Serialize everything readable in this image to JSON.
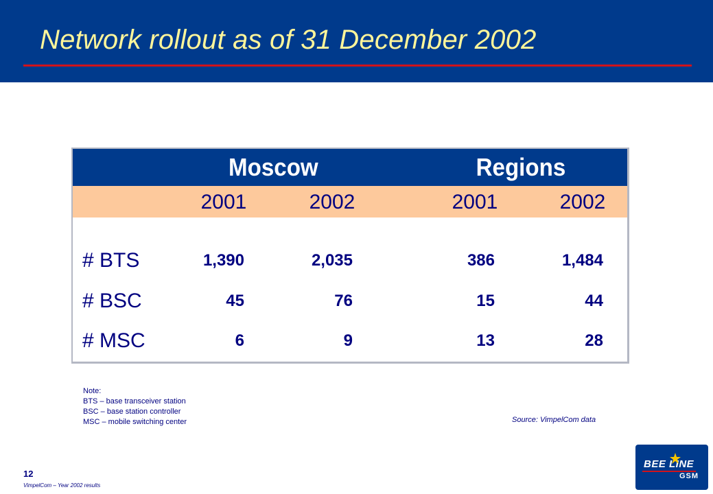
{
  "slide": {
    "title": "Network rollout as of 31 December 2002",
    "page_number": "12",
    "footer": "VimpelCom – Year 2002 results"
  },
  "table": {
    "regions": [
      "Moscow",
      "Regions"
    ],
    "years": [
      "2001",
      "2002",
      "2001",
      "2002"
    ],
    "rows": [
      {
        "label": "# BTS",
        "values": [
          "1,390",
          "2,035",
          "386",
          "1,484"
        ]
      },
      {
        "label": "# BSC",
        "values": [
          "45",
          "76",
          "15",
          "44"
        ]
      },
      {
        "label": "# MSC",
        "values": [
          "6",
          "9",
          "13",
          "28"
        ]
      }
    ]
  },
  "notes": {
    "heading": "Note:",
    "lines": [
      "BTS – base transceiver station",
      "BSC – base station controller",
      "MSC – mobile switching center"
    ],
    "source": "Source: VimpelCom data"
  },
  "logo": {
    "word": "BEE LINE",
    "sub": "GSM"
  },
  "colors": {
    "header_blue": "#003a8c",
    "title_yellow": "#fff59a",
    "rule_red": "#d0131b",
    "year_band": "#fdc99c",
    "text_navy": "#000080"
  }
}
